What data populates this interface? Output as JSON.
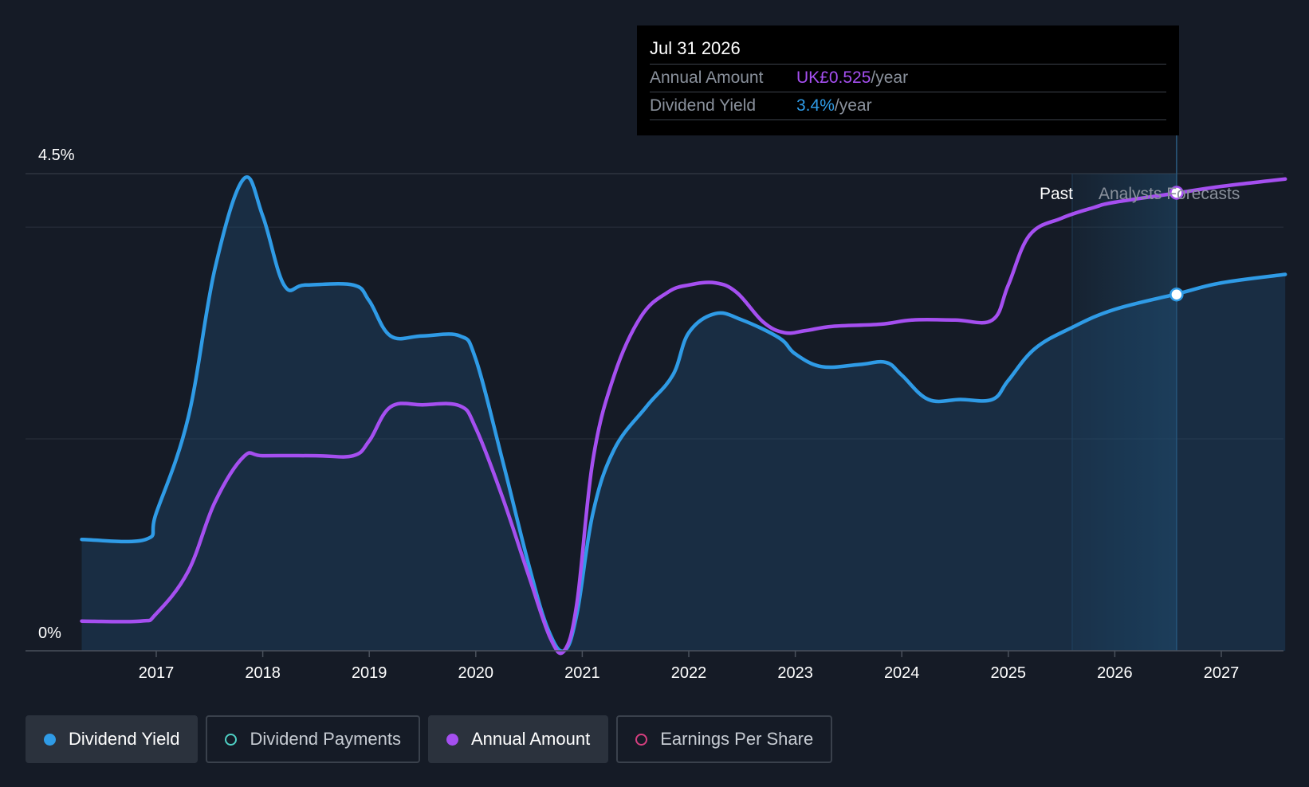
{
  "chart_data": {
    "type": "line",
    "y_axis": {
      "min_label": "0%",
      "max_label": "4.5%",
      "ylim": [
        0,
        4.5
      ]
    },
    "x_ticks": [
      "2017",
      "2018",
      "2019",
      "2020",
      "2021",
      "2022",
      "2023",
      "2024",
      "2025",
      "2026",
      "2027"
    ],
    "x_range": [
      2016.3,
      2027.6
    ],
    "period_labels": {
      "past": "Past",
      "future": "Analysts Forecasts"
    },
    "forecast_start": 2025.6,
    "series": [
      {
        "name": "Dividend Yield",
        "color": "#2f9be6",
        "area": true,
        "points": [
          [
            2016.3,
            1.05
          ],
          [
            2016.9,
            1.05
          ],
          [
            2017.0,
            1.3
          ],
          [
            2017.3,
            2.2
          ],
          [
            2017.55,
            3.6
          ],
          [
            2017.82,
            4.45
          ],
          [
            2018.0,
            4.1
          ],
          [
            2018.2,
            3.45
          ],
          [
            2018.4,
            3.45
          ],
          [
            2018.85,
            3.45
          ],
          [
            2019.0,
            3.3
          ],
          [
            2019.2,
            2.97
          ],
          [
            2019.5,
            2.97
          ],
          [
            2019.85,
            2.97
          ],
          [
            2020.0,
            2.75
          ],
          [
            2020.25,
            1.8
          ],
          [
            2020.5,
            0.8
          ],
          [
            2020.68,
            0.2
          ],
          [
            2020.83,
            0.0
          ],
          [
            2020.95,
            0.35
          ],
          [
            2021.1,
            1.3
          ],
          [
            2021.3,
            1.9
          ],
          [
            2021.6,
            2.3
          ],
          [
            2021.85,
            2.6
          ],
          [
            2022.0,
            3.0
          ],
          [
            2022.25,
            3.18
          ],
          [
            2022.5,
            3.12
          ],
          [
            2022.85,
            2.95
          ],
          [
            2023.0,
            2.8
          ],
          [
            2023.25,
            2.68
          ],
          [
            2023.6,
            2.7
          ],
          [
            2023.85,
            2.72
          ],
          [
            2024.0,
            2.6
          ],
          [
            2024.25,
            2.37
          ],
          [
            2024.55,
            2.37
          ],
          [
            2024.85,
            2.37
          ],
          [
            2025.0,
            2.55
          ],
          [
            2025.25,
            2.85
          ],
          [
            2025.6,
            3.05
          ],
          [
            2026.0,
            3.22
          ],
          [
            2026.6,
            3.37
          ],
          [
            2027.0,
            3.47
          ],
          [
            2027.6,
            3.55
          ]
        ]
      },
      {
        "name": "Annual Amount",
        "color": "#a54ff0",
        "area": false,
        "points": [
          [
            2016.3,
            0.28
          ],
          [
            2016.85,
            0.28
          ],
          [
            2017.0,
            0.35
          ],
          [
            2017.3,
            0.75
          ],
          [
            2017.55,
            1.4
          ],
          [
            2017.82,
            1.83
          ],
          [
            2018.0,
            1.84
          ],
          [
            2018.5,
            1.84
          ],
          [
            2018.85,
            1.84
          ],
          [
            2019.0,
            1.98
          ],
          [
            2019.2,
            2.3
          ],
          [
            2019.5,
            2.32
          ],
          [
            2019.85,
            2.31
          ],
          [
            2020.0,
            2.1
          ],
          [
            2020.25,
            1.45
          ],
          [
            2020.5,
            0.7
          ],
          [
            2020.7,
            0.12
          ],
          [
            2020.83,
            0.0
          ],
          [
            2020.95,
            0.45
          ],
          [
            2021.1,
            1.8
          ],
          [
            2021.3,
            2.6
          ],
          [
            2021.55,
            3.15
          ],
          [
            2021.8,
            3.38
          ],
          [
            2022.0,
            3.45
          ],
          [
            2022.25,
            3.47
          ],
          [
            2022.45,
            3.38
          ],
          [
            2022.7,
            3.1
          ],
          [
            2022.9,
            3.0
          ],
          [
            2023.1,
            3.02
          ],
          [
            2023.35,
            3.06
          ],
          [
            2023.8,
            3.08
          ],
          [
            2024.1,
            3.12
          ],
          [
            2024.5,
            3.12
          ],
          [
            2024.85,
            3.12
          ],
          [
            2025.0,
            3.45
          ],
          [
            2025.2,
            3.92
          ],
          [
            2025.5,
            4.08
          ],
          [
            2025.8,
            4.18
          ],
          [
            2026.0,
            4.23
          ],
          [
            2026.6,
            4.32
          ],
          [
            2027.0,
            4.38
          ],
          [
            2027.6,
            4.45
          ]
        ]
      }
    ],
    "highlight": {
      "x": 2026.58,
      "points": [
        3.36,
        4.32
      ]
    },
    "tooltip": {
      "date": "Jul 31 2026",
      "rows": [
        {
          "label": "Annual Amount",
          "value": "UK£0.525",
          "unit": "/year",
          "color": "#a54ff0"
        },
        {
          "label": "Dividend Yield",
          "value": "3.4%",
          "unit": "/year",
          "color": "#2f9be6"
        }
      ]
    },
    "grid": true
  },
  "legend": [
    {
      "label": "Dividend Yield",
      "color": "#2f9be6",
      "active": true,
      "filled": true
    },
    {
      "label": "Dividend Payments",
      "color": "#4fd1c5",
      "active": false,
      "filled": false
    },
    {
      "label": "Annual Amount",
      "color": "#a54ff0",
      "active": true,
      "filled": true
    },
    {
      "label": "Earnings Per Share",
      "color": "#d63f7f",
      "active": false,
      "filled": false
    }
  ]
}
